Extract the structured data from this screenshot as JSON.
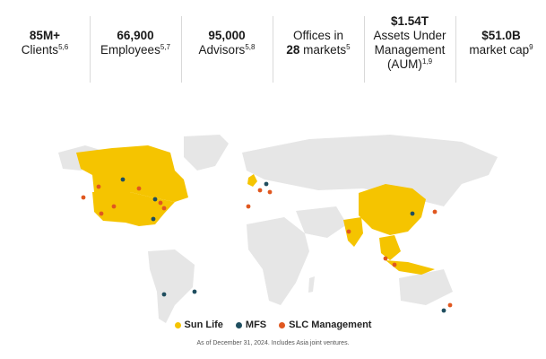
{
  "stats": [
    {
      "value": "85M+",
      "label": "Clients",
      "sup": "5,6"
    },
    {
      "value": "66,900",
      "label": "Employees",
      "sup": "5,7"
    },
    {
      "value": "95,000",
      "label": "Advisors",
      "sup": "5,8"
    },
    {
      "line1": "Offices in",
      "value": "28",
      "label": " markets",
      "sup": "5"
    },
    {
      "value": "$1.54T",
      "label1": "Assets Under",
      "label2": "Management",
      "label3": "(AUM)",
      "sup": "1,9"
    },
    {
      "value": "$51.0B",
      "label": "market cap",
      "sup": "9"
    }
  ],
  "legend": [
    {
      "label": "Sun Life",
      "color": "#f5c400"
    },
    {
      "label": "MFS",
      "color": "#1f4e5f"
    },
    {
      "label": "SLC Management",
      "color": "#e0571f"
    }
  ],
  "note": "As of December 31, 2024. Includes Asia joint ventures.",
  "colors": {
    "sun_life": "#f5c400",
    "mfs": "#1f4e5f",
    "slc": "#e0571f",
    "land": "#e6e6e6"
  }
}
